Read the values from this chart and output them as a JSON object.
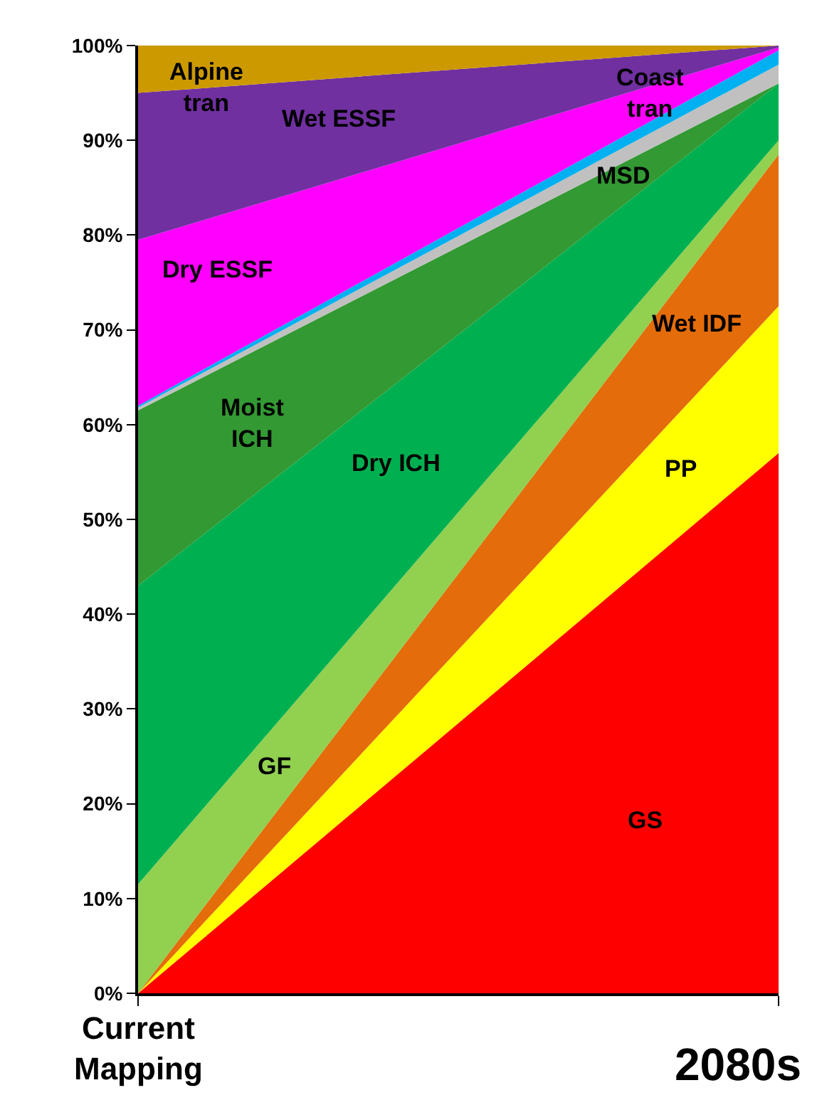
{
  "chart_data": {
    "type": "area",
    "stacked": true,
    "categories": [
      "Current Mapping",
      "2080s"
    ],
    "ylim": [
      0,
      100
    ],
    "yticks": [
      {
        "value": 0,
        "label": "0%"
      },
      {
        "value": 10,
        "label": "10%"
      },
      {
        "value": 20,
        "label": "20%"
      },
      {
        "value": 30,
        "label": "30%"
      },
      {
        "value": 40,
        "label": "40%"
      },
      {
        "value": 50,
        "label": "50%"
      },
      {
        "value": 60,
        "label": "60%"
      },
      {
        "value": 70,
        "label": "70%"
      },
      {
        "value": 80,
        "label": "80%"
      },
      {
        "value": 90,
        "label": "90%"
      },
      {
        "value": 100,
        "label": "100%"
      }
    ],
    "legend": false,
    "series": [
      {
        "name": "GS",
        "color": "#ff0000",
        "values": [
          0,
          57
        ]
      },
      {
        "name": "PP",
        "color": "#ffff00",
        "values": [
          0,
          15.5
        ]
      },
      {
        "name": "Wet IDF",
        "color": "#e46c0a",
        "values": [
          0,
          16
        ]
      },
      {
        "name": "GF",
        "color": "#92d050",
        "values": [
          11.5,
          1.5
        ]
      },
      {
        "name": "Dry ICH",
        "color": "#00b050",
        "values": [
          31.5,
          6
        ]
      },
      {
        "name": "Moist ICH",
        "color": "#339933",
        "values": [
          18.5,
          0
        ]
      },
      {
        "name": "MSD",
        "color": "#c0c0c0",
        "values": [
          0.3,
          2
        ]
      },
      {
        "name": "Coast tran",
        "color": "#00b0f0",
        "values": [
          0.2,
          1.5
        ]
      },
      {
        "name": "Dry ESSF",
        "color": "#ff00ff",
        "values": [
          17.5,
          0.3
        ]
      },
      {
        "name": "Wet ESSF",
        "color": "#7030a0",
        "values": [
          15.5,
          0.2
        ]
      },
      {
        "name": "Alpine tran",
        "color": "#cc9900",
        "values": [
          5,
          0
        ]
      }
    ]
  }
}
